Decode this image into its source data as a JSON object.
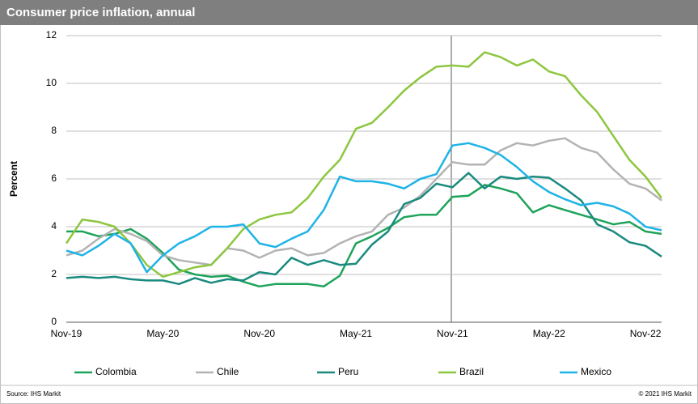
{
  "chart_data": {
    "type": "line",
    "title": "Consumer price inflation, annual",
    "y_label": "Percent",
    "source": "Source: IHS Markit",
    "copyright": "© 2021 IHS Markit",
    "categories": [
      "Nov-19",
      null,
      null,
      null,
      null,
      null,
      "May-20",
      null,
      null,
      null,
      null,
      null,
      "Nov-20",
      null,
      null,
      null,
      null,
      null,
      "May-21",
      null,
      null,
      null,
      null,
      null,
      "Nov-21",
      null,
      null,
      null,
      null,
      null,
      "May-22",
      null,
      null,
      null,
      null,
      null,
      "Nov-22",
      null
    ],
    "ylim": [
      0,
      12
    ],
    "yticks": [
      0,
      2,
      4,
      6,
      8,
      10,
      12
    ],
    "grid": true,
    "series": [
      {
        "name": "Colombia",
        "color": "#1ea35a",
        "values": [
          3.8,
          3.8,
          3.6,
          3.7,
          3.9,
          3.5,
          2.9,
          2.2,
          2.0,
          1.9,
          1.95,
          1.7,
          1.5,
          1.6,
          1.6,
          1.6,
          1.5,
          1.95,
          3.3,
          3.6,
          3.95,
          4.4,
          4.5,
          4.5,
          5.25,
          5.3,
          5.75,
          5.6,
          5.4,
          4.6,
          4.9,
          4.7,
          4.5,
          4.3,
          4.1,
          4.2,
          3.8,
          3.7
        ]
      },
      {
        "name": "Chile",
        "color": "#b3b3b3",
        "values": [
          2.8,
          3.0,
          3.5,
          3.9,
          3.7,
          3.4,
          2.8,
          2.6,
          2.5,
          2.4,
          3.1,
          3.0,
          2.7,
          3.0,
          3.1,
          2.8,
          2.9,
          3.3,
          3.6,
          3.8,
          4.5,
          4.8,
          5.3,
          6.0,
          6.7,
          6.6,
          6.6,
          7.2,
          7.5,
          7.4,
          7.6,
          7.7,
          7.3,
          7.1,
          6.4,
          5.8,
          5.6,
          5.1
        ]
      },
      {
        "name": "Peru",
        "color": "#1a8a7f",
        "values": [
          1.85,
          1.9,
          1.85,
          1.9,
          1.8,
          1.75,
          1.75,
          1.6,
          1.85,
          1.65,
          1.8,
          1.75,
          2.1,
          2.0,
          2.7,
          2.4,
          2.6,
          2.4,
          2.45,
          3.25,
          3.8,
          4.95,
          5.2,
          5.8,
          5.65,
          6.25,
          5.6,
          6.1,
          6.0,
          6.1,
          6.05,
          5.6,
          5.1,
          4.1,
          3.8,
          3.35,
          3.2,
          2.75
        ]
      },
      {
        "name": "Brazil",
        "color": "#8dc63f",
        "values": [
          3.3,
          4.3,
          4.2,
          4.0,
          3.3,
          2.4,
          1.9,
          2.1,
          2.3,
          2.4,
          3.1,
          3.9,
          4.3,
          4.5,
          4.6,
          5.2,
          6.1,
          6.8,
          8.1,
          8.35,
          9.0,
          9.7,
          10.25,
          10.7,
          10.75,
          10.7,
          11.3,
          11.1,
          10.75,
          11.0,
          10.5,
          10.3,
          9.5,
          8.8,
          7.8,
          6.8,
          6.1,
          5.2
        ]
      },
      {
        "name": "Mexico",
        "color": "#1fb3e6",
        "values": [
          3.0,
          2.8,
          3.2,
          3.7,
          3.3,
          2.1,
          2.8,
          3.3,
          3.6,
          4.0,
          4.0,
          4.1,
          3.3,
          3.15,
          3.5,
          3.8,
          4.7,
          6.1,
          5.9,
          5.9,
          5.8,
          5.6,
          6.0,
          6.2,
          7.4,
          7.5,
          7.3,
          7.0,
          6.5,
          5.9,
          5.45,
          5.15,
          4.9,
          5.0,
          4.85,
          4.55,
          4.0,
          3.85
        ]
      }
    ]
  }
}
